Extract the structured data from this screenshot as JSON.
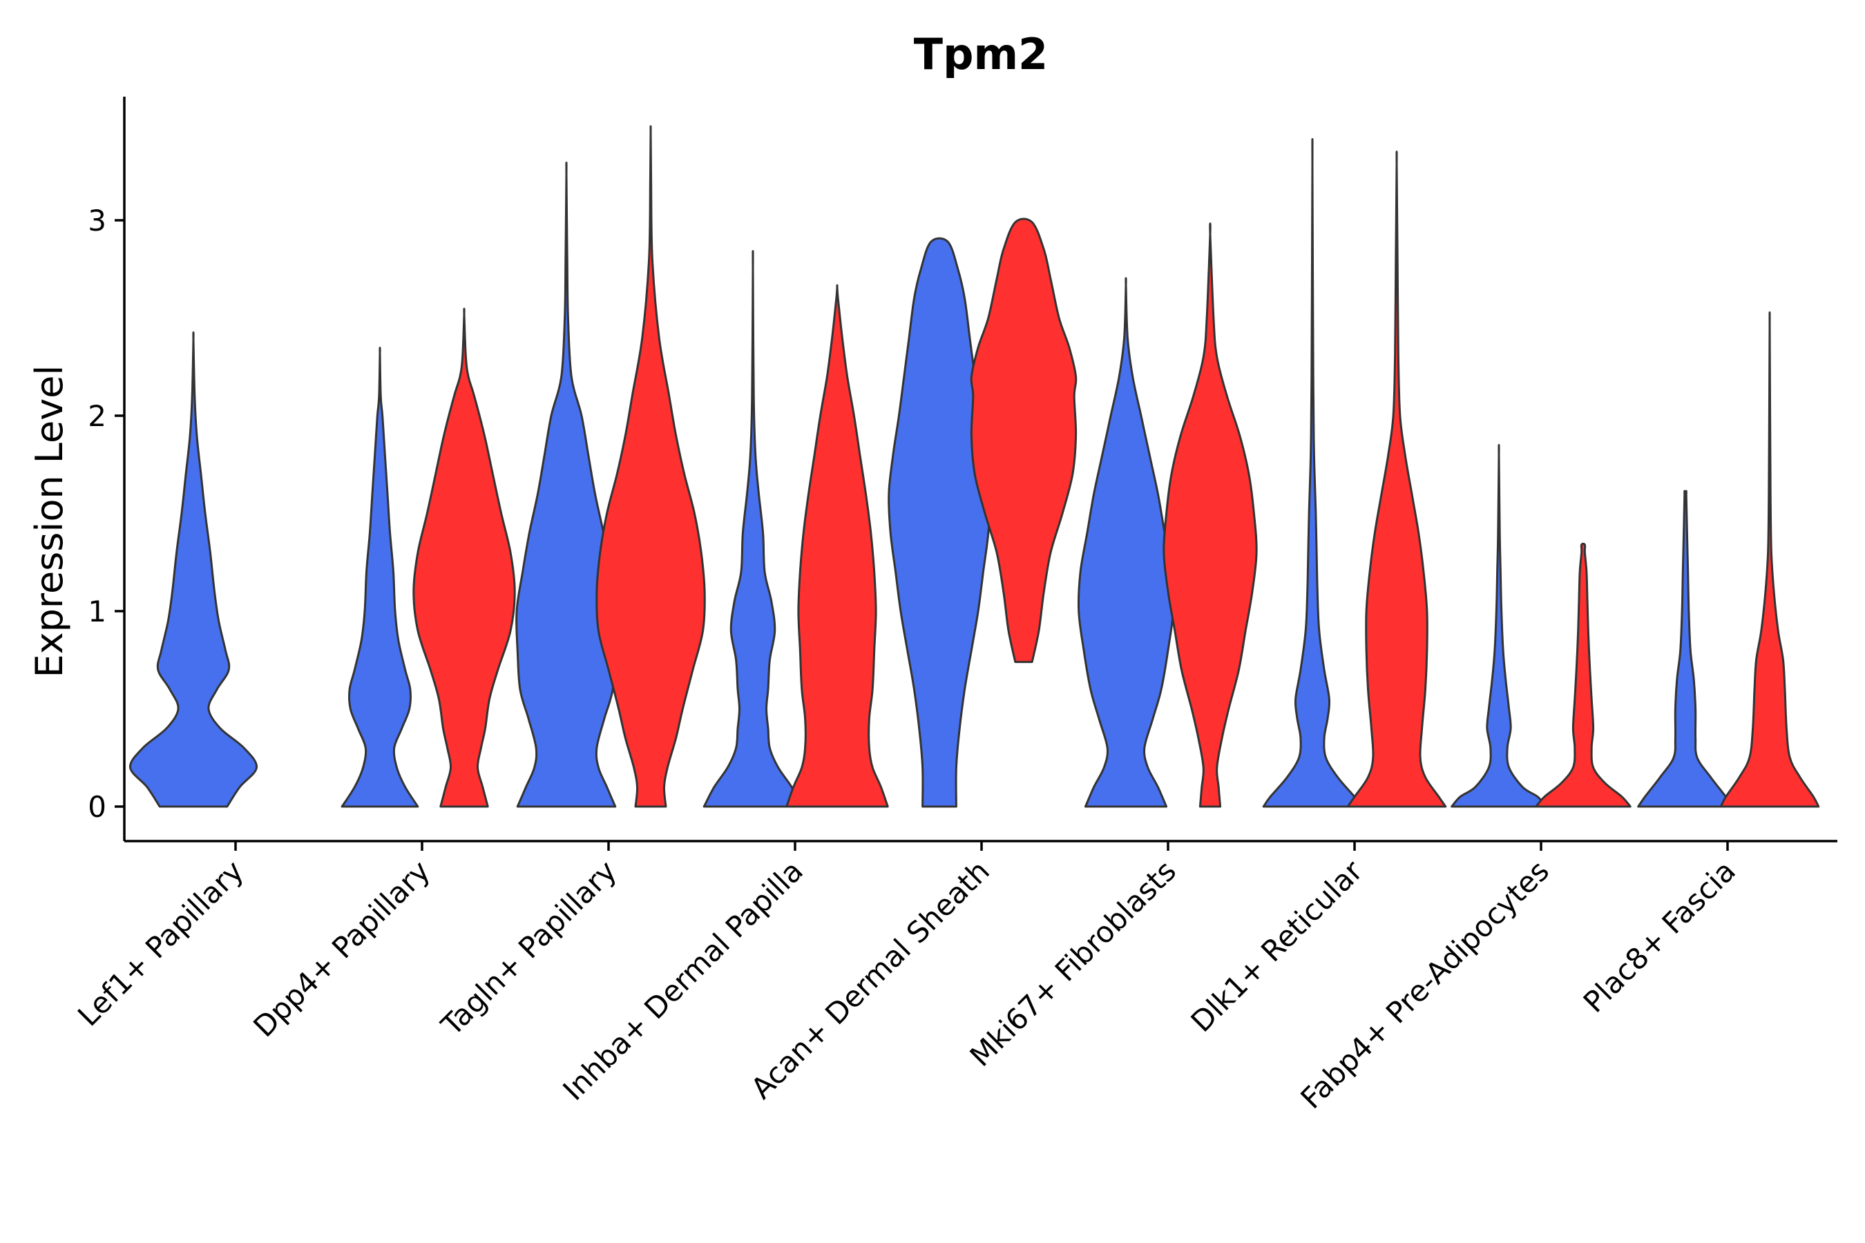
{
  "chart_data": {
    "type": "violin",
    "title": "Tpm2",
    "xlabel": "",
    "ylabel": "Expression Level",
    "ylim": [
      -0.17,
      3.62
    ],
    "yticks": [
      0,
      1,
      2,
      3
    ],
    "grid": false,
    "legend": "none",
    "group_colors": [
      "#4670EE",
      "#FF3030"
    ],
    "categories": [
      "Lef1+ Papillary",
      "Dpp4+ Papillary",
      "Tagln+ Papillary",
      "Inhba+ Dermal Papilla",
      "Acan+ Dermal Sheath",
      "Mki67+ Fibroblasts",
      "Dlk1+ Reticular",
      "Fabp4+ Pre-Adipocytes",
      "Plac8+ Fascia"
    ],
    "violins": [
      {
        "category": 0,
        "group": 0,
        "profile": [
          [
            0,
            0.4
          ],
          [
            0.1,
            0.55
          ],
          [
            0.2,
            0.75
          ],
          [
            0.3,
            0.6
          ],
          [
            0.4,
            0.32
          ],
          [
            0.5,
            0.18
          ],
          [
            0.6,
            0.28
          ],
          [
            0.7,
            0.42
          ],
          [
            0.8,
            0.38
          ],
          [
            0.95,
            0.3
          ],
          [
            1.1,
            0.25
          ],
          [
            1.3,
            0.2
          ],
          [
            1.5,
            0.14
          ],
          [
            1.7,
            0.09
          ],
          [
            1.9,
            0.04
          ],
          [
            2.1,
            0.015
          ],
          [
            2.39,
            0
          ]
        ]
      },
      {
        "category": 1,
        "group": 0,
        "profile": [
          [
            0,
            0.45
          ],
          [
            0.1,
            0.3
          ],
          [
            0.2,
            0.2
          ],
          [
            0.3,
            0.17
          ],
          [
            0.4,
            0.26
          ],
          [
            0.5,
            0.35
          ],
          [
            0.6,
            0.36
          ],
          [
            0.7,
            0.3
          ],
          [
            0.85,
            0.22
          ],
          [
            1.0,
            0.18
          ],
          [
            1.2,
            0.16
          ],
          [
            1.4,
            0.12
          ],
          [
            1.6,
            0.09
          ],
          [
            1.8,
            0.06
          ],
          [
            2.0,
            0.03
          ],
          [
            2.1,
            0.01
          ],
          [
            2.32,
            0
          ]
        ]
      },
      {
        "category": 1,
        "group": 1,
        "profile": [
          [
            0,
            0.28
          ],
          [
            0.1,
            0.22
          ],
          [
            0.2,
            0.16
          ],
          [
            0.3,
            0.2
          ],
          [
            0.4,
            0.25
          ],
          [
            0.55,
            0.3
          ],
          [
            0.7,
            0.4
          ],
          [
            0.9,
            0.55
          ],
          [
            1.1,
            0.6
          ],
          [
            1.3,
            0.55
          ],
          [
            1.5,
            0.44
          ],
          [
            1.7,
            0.34
          ],
          [
            1.9,
            0.24
          ],
          [
            2.1,
            0.12
          ],
          [
            2.2,
            0.05
          ],
          [
            2.3,
            0.02
          ],
          [
            2.52,
            0
          ]
        ]
      },
      {
        "category": 2,
        "group": 0,
        "profile": [
          [
            0,
            0.58
          ],
          [
            0.1,
            0.48
          ],
          [
            0.2,
            0.38
          ],
          [
            0.3,
            0.36
          ],
          [
            0.45,
            0.45
          ],
          [
            0.6,
            0.55
          ],
          [
            0.8,
            0.58
          ],
          [
            1.0,
            0.59
          ],
          [
            1.2,
            0.52
          ],
          [
            1.4,
            0.44
          ],
          [
            1.6,
            0.34
          ],
          [
            1.8,
            0.26
          ],
          [
            2.0,
            0.18
          ],
          [
            2.2,
            0.06
          ],
          [
            2.5,
            0.02
          ],
          [
            2.8,
            0.01
          ],
          [
            3.24,
            0
          ]
        ]
      },
      {
        "category": 2,
        "group": 1,
        "profile": [
          [
            0,
            0.18
          ],
          [
            0.1,
            0.16
          ],
          [
            0.2,
            0.2
          ],
          [
            0.35,
            0.3
          ],
          [
            0.5,
            0.38
          ],
          [
            0.7,
            0.5
          ],
          [
            0.9,
            0.62
          ],
          [
            1.1,
            0.64
          ],
          [
            1.3,
            0.6
          ],
          [
            1.5,
            0.52
          ],
          [
            1.7,
            0.4
          ],
          [
            1.9,
            0.3
          ],
          [
            2.1,
            0.22
          ],
          [
            2.4,
            0.1
          ],
          [
            2.8,
            0.02
          ],
          [
            3.2,
            0.005
          ],
          [
            3.45,
            0
          ]
        ]
      },
      {
        "category": 3,
        "group": 0,
        "profile": [
          [
            0,
            0.58
          ],
          [
            0.1,
            0.46
          ],
          [
            0.2,
            0.3
          ],
          [
            0.3,
            0.2
          ],
          [
            0.4,
            0.18
          ],
          [
            0.5,
            0.16
          ],
          [
            0.6,
            0.18
          ],
          [
            0.75,
            0.2
          ],
          [
            0.9,
            0.26
          ],
          [
            1.05,
            0.22
          ],
          [
            1.2,
            0.14
          ],
          [
            1.4,
            0.12
          ],
          [
            1.6,
            0.07
          ],
          [
            1.8,
            0.03
          ],
          [
            2.1,
            0.01
          ],
          [
            2.76,
            0
          ]
        ]
      },
      {
        "category": 3,
        "group": 1,
        "profile": [
          [
            0,
            0.6
          ],
          [
            0.1,
            0.52
          ],
          [
            0.2,
            0.42
          ],
          [
            0.3,
            0.38
          ],
          [
            0.45,
            0.38
          ],
          [
            0.6,
            0.42
          ],
          [
            0.8,
            0.44
          ],
          [
            1.0,
            0.46
          ],
          [
            1.2,
            0.44
          ],
          [
            1.4,
            0.4
          ],
          [
            1.6,
            0.34
          ],
          [
            1.8,
            0.27
          ],
          [
            2.0,
            0.2
          ],
          [
            2.2,
            0.12
          ],
          [
            2.4,
            0.06
          ],
          [
            2.6,
            0.01
          ],
          [
            2.66,
            0
          ]
        ]
      },
      {
        "category": 4,
        "group": 0,
        "profile": [
          [
            0,
            0.2
          ],
          [
            0.2,
            0.2
          ],
          [
            0.4,
            0.24
          ],
          [
            0.6,
            0.3
          ],
          [
            0.8,
            0.38
          ],
          [
            1.0,
            0.46
          ],
          [
            1.2,
            0.52
          ],
          [
            1.4,
            0.58
          ],
          [
            1.6,
            0.6
          ],
          [
            1.8,
            0.55
          ],
          [
            2.0,
            0.48
          ],
          [
            2.2,
            0.42
          ],
          [
            2.4,
            0.36
          ],
          [
            2.6,
            0.3
          ],
          [
            2.75,
            0.22
          ],
          [
            2.89,
            0.1
          ]
        ]
      },
      {
        "category": 4,
        "group": 1,
        "profile": [
          [
            0.74,
            0.1
          ],
          [
            0.9,
            0.18
          ],
          [
            1.1,
            0.24
          ],
          [
            1.3,
            0.32
          ],
          [
            1.5,
            0.46
          ],
          [
            1.7,
            0.58
          ],
          [
            1.9,
            0.62
          ],
          [
            2.1,
            0.6
          ],
          [
            2.2,
            0.62
          ],
          [
            2.35,
            0.54
          ],
          [
            2.5,
            0.42
          ],
          [
            2.7,
            0.32
          ],
          [
            2.85,
            0.24
          ],
          [
            2.99,
            0.1
          ]
        ]
      },
      {
        "category": 5,
        "group": 0,
        "profile": [
          [
            0,
            0.48
          ],
          [
            0.1,
            0.38
          ],
          [
            0.2,
            0.26
          ],
          [
            0.3,
            0.22
          ],
          [
            0.45,
            0.32
          ],
          [
            0.6,
            0.42
          ],
          [
            0.8,
            0.5
          ],
          [
            1.0,
            0.56
          ],
          [
            1.2,
            0.54
          ],
          [
            1.4,
            0.46
          ],
          [
            1.6,
            0.38
          ],
          [
            1.8,
            0.28
          ],
          [
            2.0,
            0.18
          ],
          [
            2.2,
            0.08
          ],
          [
            2.4,
            0.02
          ],
          [
            2.67,
            0
          ]
        ]
      },
      {
        "category": 5,
        "group": 1,
        "profile": [
          [
            0,
            0.12
          ],
          [
            0.1,
            0.1
          ],
          [
            0.2,
            0.08
          ],
          [
            0.35,
            0.14
          ],
          [
            0.5,
            0.22
          ],
          [
            0.7,
            0.34
          ],
          [
            0.9,
            0.42
          ],
          [
            1.1,
            0.5
          ],
          [
            1.3,
            0.55
          ],
          [
            1.5,
            0.52
          ],
          [
            1.7,
            0.46
          ],
          [
            1.9,
            0.35
          ],
          [
            2.1,
            0.2
          ],
          [
            2.3,
            0.08
          ],
          [
            2.5,
            0.04
          ],
          [
            2.93,
            0
          ]
        ]
      },
      {
        "category": 6,
        "group": 0,
        "profile": [
          [
            0,
            0.58
          ],
          [
            0.05,
            0.5
          ],
          [
            0.15,
            0.3
          ],
          [
            0.25,
            0.16
          ],
          [
            0.35,
            0.14
          ],
          [
            0.45,
            0.18
          ],
          [
            0.55,
            0.2
          ],
          [
            0.7,
            0.14
          ],
          [
            0.9,
            0.08
          ],
          [
            1.1,
            0.06
          ],
          [
            1.3,
            0.05
          ],
          [
            1.5,
            0.04
          ],
          [
            1.8,
            0.02
          ],
          [
            2.2,
            0.01
          ],
          [
            3.28,
            0
          ]
        ]
      },
      {
        "category": 6,
        "group": 1,
        "profile": [
          [
            0,
            0.58
          ],
          [
            0.05,
            0.5
          ],
          [
            0.15,
            0.34
          ],
          [
            0.25,
            0.28
          ],
          [
            0.4,
            0.3
          ],
          [
            0.6,
            0.34
          ],
          [
            0.8,
            0.36
          ],
          [
            1.0,
            0.36
          ],
          [
            1.2,
            0.32
          ],
          [
            1.4,
            0.26
          ],
          [
            1.6,
            0.18
          ],
          [
            1.8,
            0.1
          ],
          [
            2.0,
            0.04
          ],
          [
            2.3,
            0.02
          ],
          [
            2.8,
            0.01
          ],
          [
            3.29,
            0
          ]
        ]
      },
      {
        "category": 7,
        "group": 0,
        "profile": [
          [
            0,
            0.56
          ],
          [
            0.05,
            0.46
          ],
          [
            0.1,
            0.28
          ],
          [
            0.2,
            0.12
          ],
          [
            0.3,
            0.1
          ],
          [
            0.4,
            0.14
          ],
          [
            0.5,
            0.12
          ],
          [
            0.65,
            0.08
          ],
          [
            0.8,
            0.05
          ],
          [
            1.0,
            0.03
          ],
          [
            1.2,
            0.02
          ],
          [
            1.4,
            0.01
          ],
          [
            1.8,
            0
          ]
        ]
      },
      {
        "category": 7,
        "group": 1,
        "profile": [
          [
            0,
            0.56
          ],
          [
            0.05,
            0.46
          ],
          [
            0.12,
            0.26
          ],
          [
            0.2,
            0.12
          ],
          [
            0.3,
            0.1
          ],
          [
            0.4,
            0.12
          ],
          [
            0.55,
            0.1
          ],
          [
            0.7,
            0.08
          ],
          [
            0.9,
            0.06
          ],
          [
            1.05,
            0.05
          ],
          [
            1.2,
            0.04
          ],
          [
            1.3,
            0.02
          ],
          [
            1.34,
            0.02
          ]
        ]
      },
      {
        "category": 8,
        "group": 0,
        "profile": [
          [
            0,
            0.56
          ],
          [
            0.05,
            0.48
          ],
          [
            0.15,
            0.3
          ],
          [
            0.25,
            0.14
          ],
          [
            0.35,
            0.12
          ],
          [
            0.5,
            0.12
          ],
          [
            0.65,
            0.1
          ],
          [
            0.8,
            0.06
          ],
          [
            1.0,
            0.04
          ],
          [
            1.2,
            0.03
          ],
          [
            1.4,
            0.02
          ],
          [
            1.6,
            0.01
          ],
          [
            1.6,
            0.01
          ]
        ]
      },
      {
        "category": 8,
        "group": 1,
        "profile": [
          [
            0,
            0.58
          ],
          [
            0.05,
            0.52
          ],
          [
            0.15,
            0.36
          ],
          [
            0.25,
            0.24
          ],
          [
            0.4,
            0.2
          ],
          [
            0.6,
            0.18
          ],
          [
            0.75,
            0.16
          ],
          [
            0.9,
            0.1
          ],
          [
            1.1,
            0.05
          ],
          [
            1.3,
            0.02
          ],
          [
            1.6,
            0.01
          ],
          [
            2.0,
            0.005
          ],
          [
            2.47,
            0
          ]
        ]
      }
    ]
  }
}
